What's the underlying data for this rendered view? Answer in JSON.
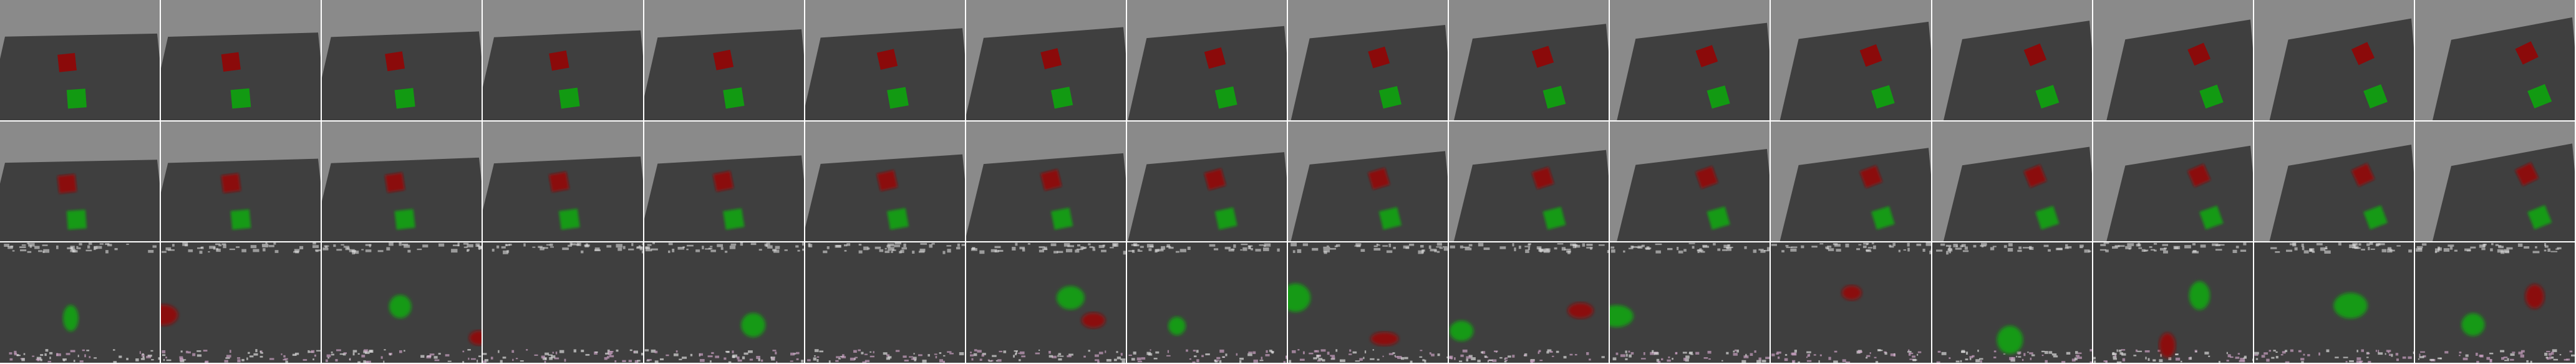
{
  "grid": {
    "rows": 3,
    "cols": 16,
    "row_kinds": [
      "ground-truth-frames",
      "reconstructed-frames",
      "degraded-frames"
    ]
  },
  "colors": {
    "background_gray": "#8a8a8a",
    "table_dark": "#3f3f3f",
    "cube_red": "#8b0a0a",
    "cube_green": "#129a12",
    "noise_white": "#d8d8d8",
    "noise_pink": "#c8a0c0",
    "separator": "#101010"
  }
}
